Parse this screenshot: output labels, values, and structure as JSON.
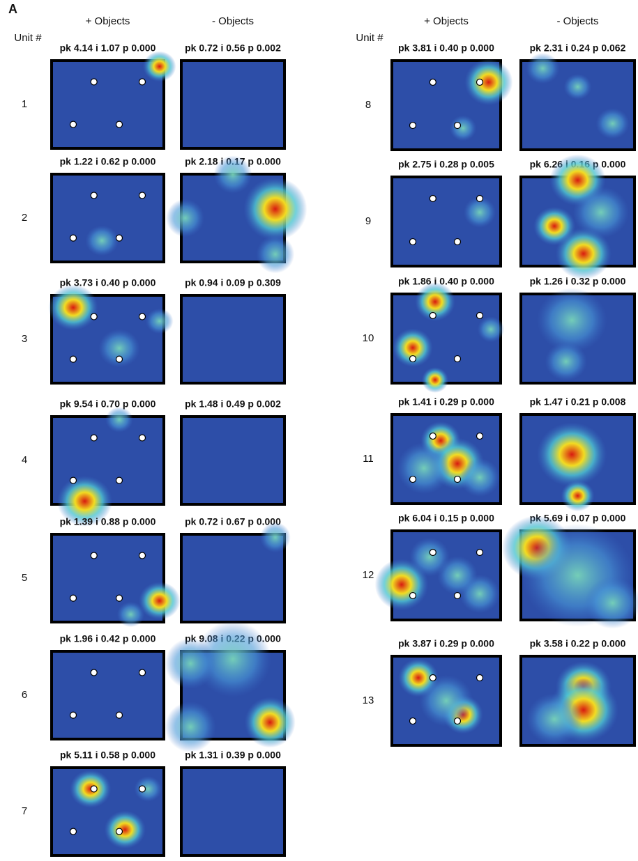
{
  "panel": "A",
  "groups": [
    {
      "unit_header": "Unit #",
      "columns": [
        "+ Objects",
        "- Objects"
      ],
      "units": [
        {
          "number": 1,
          "plus": "pk 4.14 i 1.07 p 0.000",
          "minus": "pk 0.72 i 0.56 p 0.002"
        },
        {
          "number": 2,
          "plus": "pk 1.22 i 0.62 p 0.000",
          "minus": "pk 2.18 i 0.17 p 0.000"
        },
        {
          "number": 3,
          "plus": "pk 3.73 i 0.40 p 0.000",
          "minus": "pk 0.94 i 0.09 p 0.309"
        },
        {
          "number": 4,
          "plus": "pk 9.54 i 0.70 p 0.000",
          "minus": "pk 1.48 i 0.49 p 0.002"
        },
        {
          "number": 5,
          "plus": "pk 1.39 i 0.88 p 0.000",
          "minus": "pk 0.72 i 0.67 p 0.000"
        },
        {
          "number": 6,
          "plus": "pk 1.96 i 0.42 p 0.000",
          "minus": "pk 9.08 i 0.22 p 0.000"
        },
        {
          "number": 7,
          "plus": "pk 5.11 i 0.58 p 0.000",
          "minus": "pk 1.31 i 0.39 p 0.000"
        }
      ]
    },
    {
      "unit_header": "Unit #",
      "columns": [
        "+ Objects",
        "- Objects"
      ],
      "units": [
        {
          "number": 8,
          "plus": "pk 3.81 i 0.40 p 0.000",
          "minus": "pk 2.31 i 0.24 p 0.062"
        },
        {
          "number": 9,
          "plus": "pk 2.75 i 0.28 p 0.005",
          "minus": "pk 6.26 i 0.16 p 0.000"
        },
        {
          "number": 10,
          "plus": "pk 1.86 i 0.40 p 0.000",
          "minus": "pk 1.26 i 0.32 p 0.000"
        },
        {
          "number": 11,
          "plus": "pk 1.41 i 0.29 p 0.000",
          "minus": "pk 1.47 i 0.21 p 0.008"
        },
        {
          "number": 12,
          "plus": "pk 6.04 i 0.15 p 0.000",
          "minus": "pk 5.69 i 0.07 p 0.000"
        },
        {
          "number": 13,
          "plus": "pk 3.87 i 0.29 p 0.000",
          "minus": "pk 3.58 i 0.22 p 0.000"
        }
      ]
    }
  ]
}
